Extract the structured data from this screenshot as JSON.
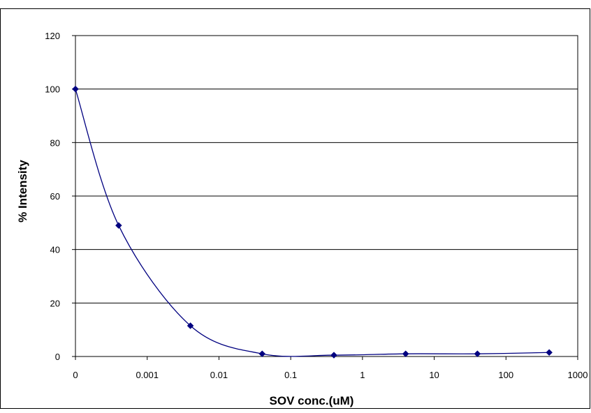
{
  "chart_data": {
    "type": "line",
    "xlabel": "SOV conc.(uM)",
    "ylabel": "% Intensity",
    "x_scale": "log",
    "x_tick_labels": [
      "0",
      "0.001",
      "0.01",
      "0.1",
      "1",
      "10",
      "100",
      "1000"
    ],
    "y_ticks": [
      0,
      20,
      40,
      60,
      80,
      100,
      120
    ],
    "ylim": [
      0,
      120
    ],
    "grid": "horizontal",
    "legend": "none",
    "series": [
      {
        "color": "#000080",
        "marker": "diamond",
        "smooth": true,
        "points": [
          {
            "x": 0.0001,
            "y": 100
          },
          {
            "x": 0.0004,
            "y": 49
          },
          {
            "x": 0.004,
            "y": 11.5
          },
          {
            "x": 0.04,
            "y": 1
          },
          {
            "x": 0.4,
            "y": 0.5
          },
          {
            "x": 4,
            "y": 1
          },
          {
            "x": 40,
            "y": 1
          },
          {
            "x": 400,
            "y": 1.5
          }
        ]
      }
    ]
  }
}
